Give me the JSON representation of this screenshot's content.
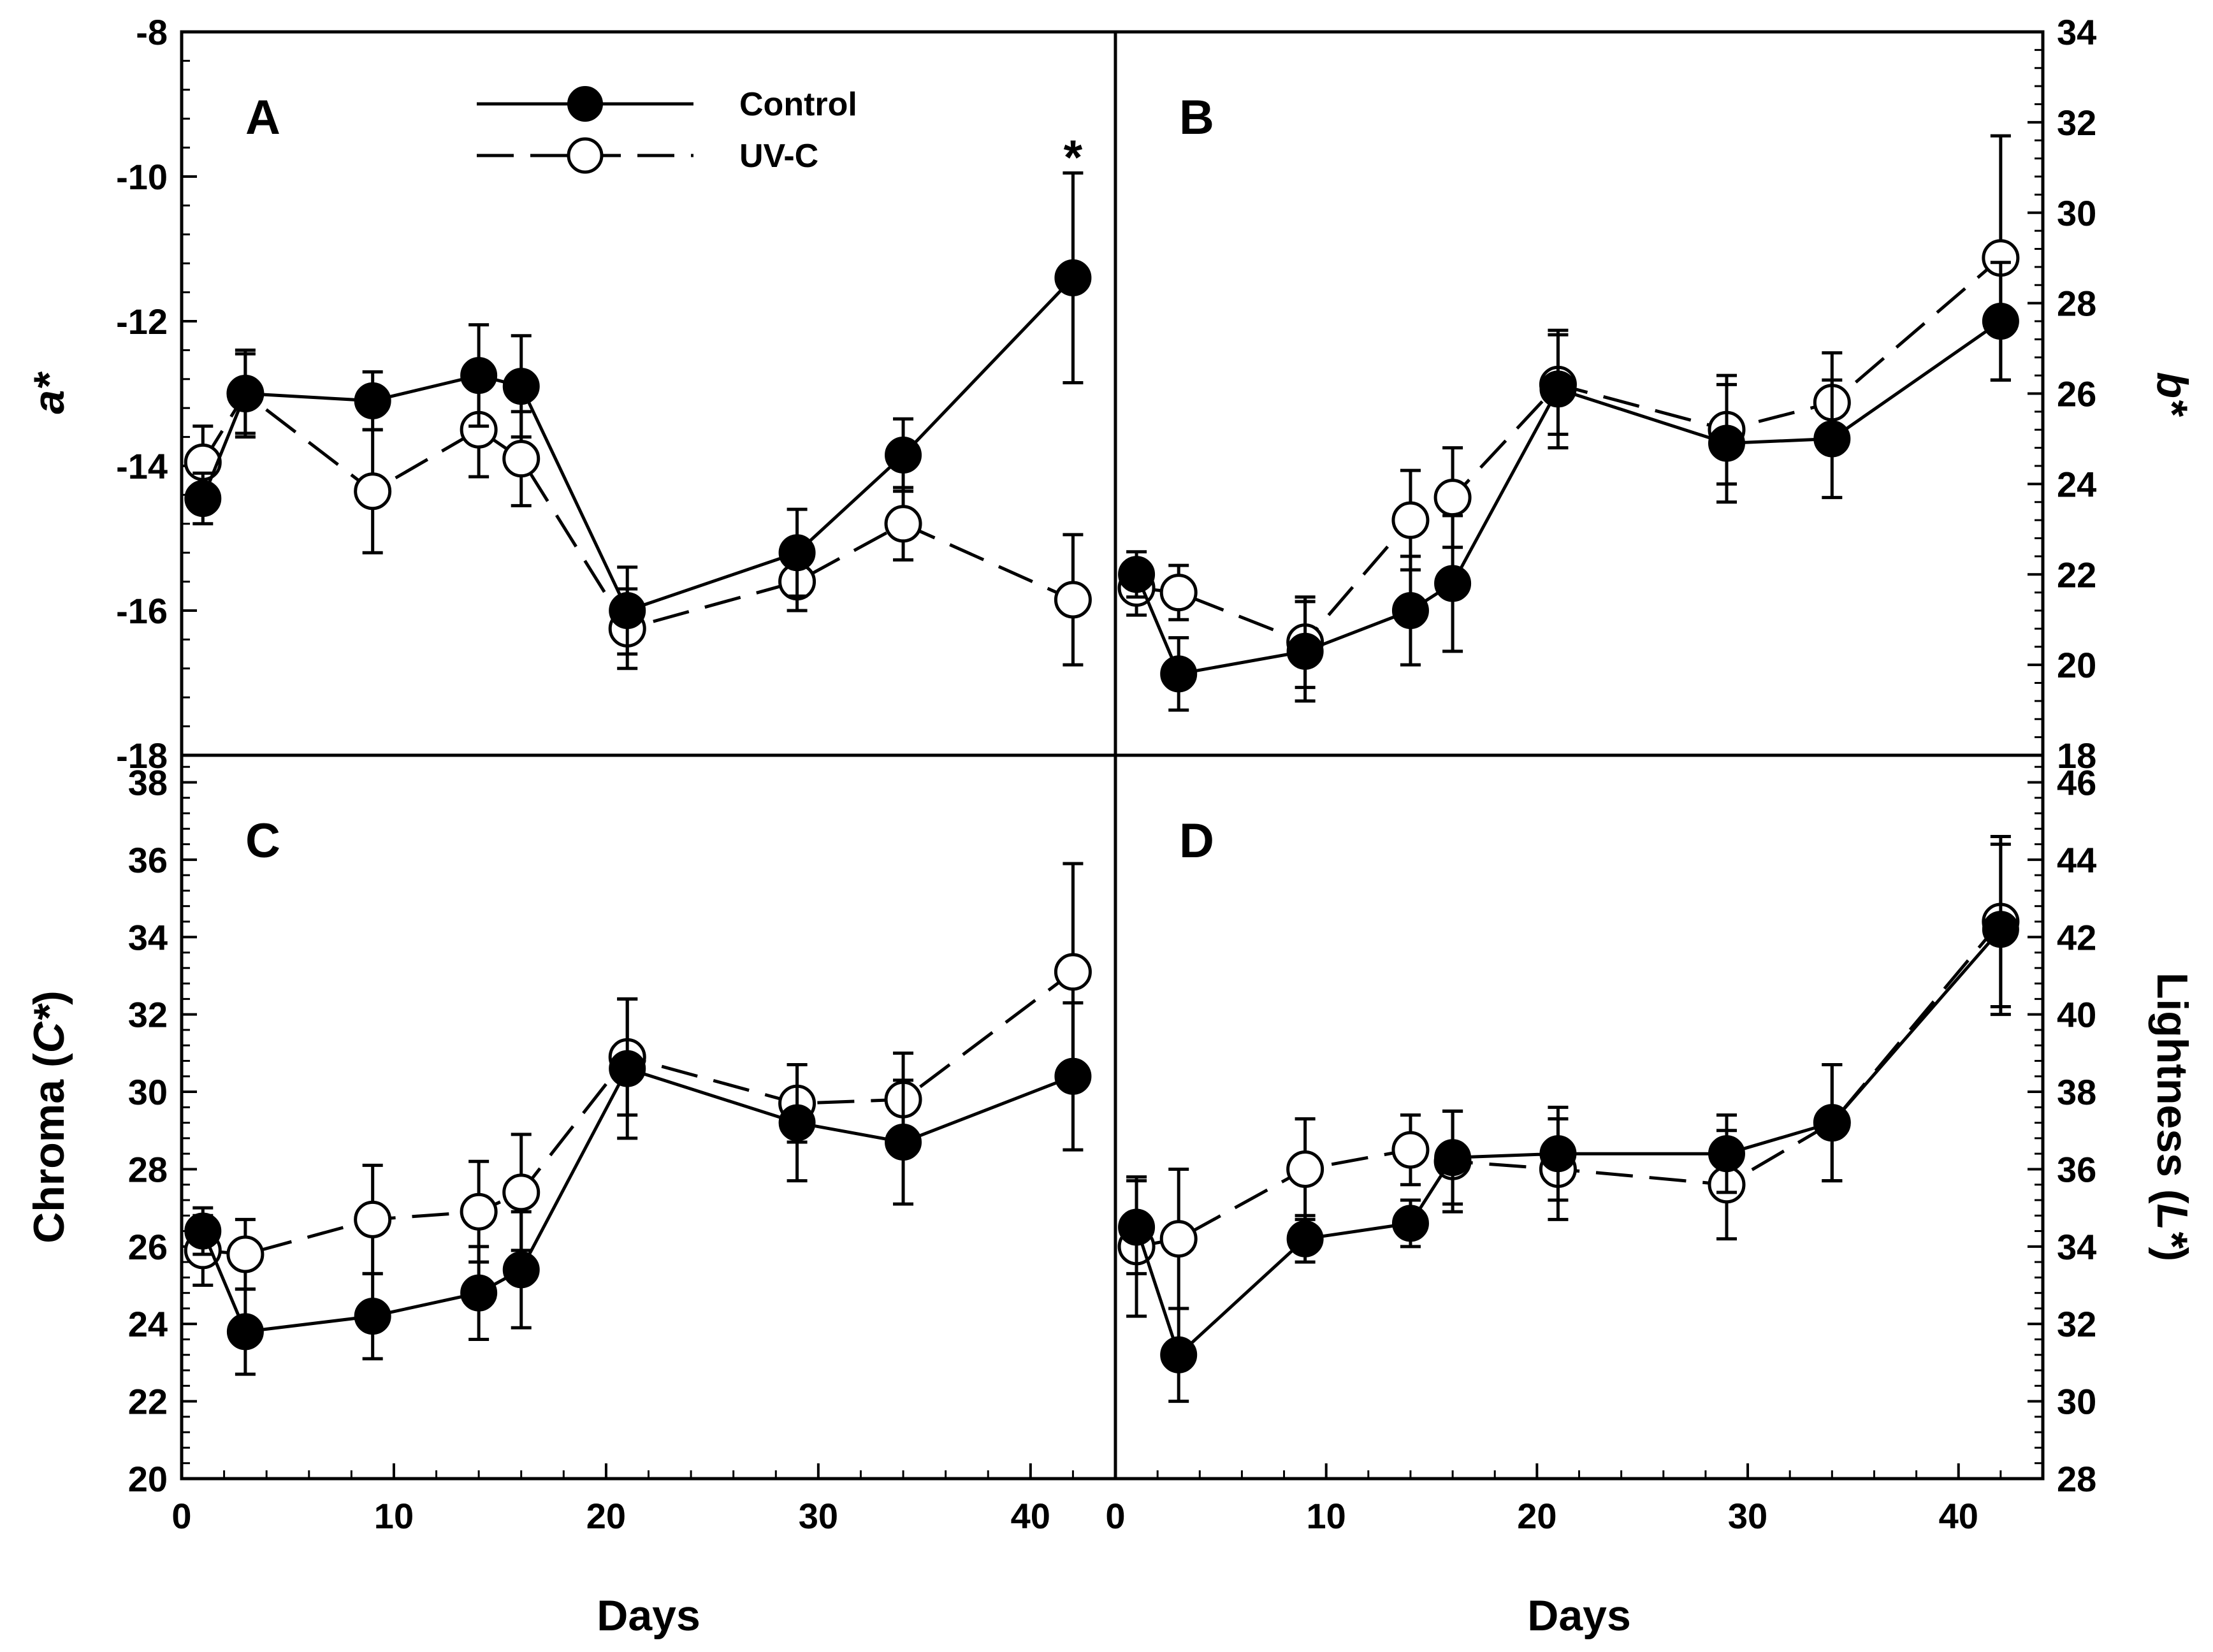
{
  "legend": {
    "control_label": "Control",
    "uvc_label": "UV-C"
  },
  "shared_xlabel": "Days",
  "chart_data": [
    {
      "panel": "A",
      "type": "line",
      "ylabel": "a*",
      "ylim": [
        -18,
        -8
      ],
      "yticks": [
        -18,
        -16,
        -14,
        -12,
        -10,
        -8
      ],
      "xlim": [
        0,
        44
      ],
      "xticks": [
        0,
        10,
        20,
        30,
        40
      ],
      "y_axis_side": "left",
      "annotation": {
        "text": "*",
        "x": 42,
        "y": -9.7
      },
      "series": [
        {
          "name": "Control",
          "x": [
            1,
            3,
            9,
            14,
            16,
            21,
            29,
            34,
            42
          ],
          "y": [
            -14.45,
            -13.0,
            -13.1,
            -12.75,
            -12.9,
            -16.0,
            -15.2,
            -13.85,
            -11.4
          ],
          "err": [
            0.35,
            0.6,
            0.4,
            0.7,
            0.7,
            0.6,
            0.6,
            0.5,
            1.45
          ]
        },
        {
          "name": "UV-C",
          "x": [
            1,
            3,
            9,
            14,
            16,
            21,
            29,
            34,
            42
          ],
          "y": [
            -13.95,
            -13.0,
            -14.35,
            -13.5,
            -13.9,
            -16.25,
            -15.6,
            -14.8,
            -15.85
          ],
          "err": [
            0.5,
            0.55,
            0.85,
            0.65,
            0.65,
            0.55,
            0.4,
            0.5,
            0.9
          ]
        }
      ]
    },
    {
      "panel": "B",
      "type": "line",
      "ylabel": "b*",
      "ylim": [
        18,
        34
      ],
      "yticks": [
        18,
        20,
        22,
        24,
        26,
        28,
        30,
        32,
        34
      ],
      "xlim": [
        0,
        44
      ],
      "xticks": [
        0,
        10,
        20,
        30,
        40
      ],
      "y_axis_side": "right",
      "series": [
        {
          "name": "Control",
          "x": [
            1,
            3,
            9,
            14,
            16,
            21,
            29,
            34,
            42
          ],
          "y": [
            22.0,
            19.8,
            20.3,
            21.2,
            21.8,
            26.1,
            24.9,
            25.0,
            27.6
          ],
          "err": [
            0.5,
            0.8,
            1.1,
            1.2,
            1.5,
            1.3,
            1.3,
            1.3,
            1.3
          ]
        },
        {
          "name": "UV-C",
          "x": [
            1,
            3,
            9,
            14,
            16,
            21,
            29,
            34,
            42
          ],
          "y": [
            21.7,
            21.6,
            20.5,
            23.2,
            23.7,
            26.2,
            25.2,
            25.8,
            29.0
          ],
          "err": [
            0.6,
            0.6,
            1.0,
            1.1,
            1.1,
            1.1,
            1.2,
            1.1,
            2.7
          ]
        }
      ]
    },
    {
      "panel": "C",
      "type": "line",
      "ylabel": "Chroma (C*)",
      "ylim": [
        20,
        38.7
      ],
      "yticks": [
        20,
        22,
        24,
        26,
        28,
        30,
        32,
        34,
        36,
        38
      ],
      "xlim": [
        0,
        44
      ],
      "xticks": [
        0,
        10,
        20,
        30,
        40
      ],
      "y_axis_side": "left",
      "series": [
        {
          "name": "Control",
          "x": [
            1,
            3,
            9,
            14,
            16,
            21,
            29,
            34,
            42
          ],
          "y": [
            26.4,
            23.8,
            24.2,
            24.8,
            25.4,
            30.6,
            29.2,
            28.7,
            30.4
          ],
          "err": [
            0.6,
            1.1,
            1.1,
            1.2,
            1.5,
            1.8,
            1.5,
            1.6,
            1.9
          ]
        },
        {
          "name": "UV-C",
          "x": [
            1,
            3,
            9,
            14,
            16,
            21,
            29,
            34,
            42
          ],
          "y": [
            25.9,
            25.8,
            26.7,
            26.9,
            27.4,
            30.9,
            29.7,
            29.8,
            33.1
          ],
          "err": [
            0.9,
            0.9,
            1.4,
            1.3,
            1.5,
            1.5,
            1.0,
            1.2,
            2.8
          ]
        }
      ]
    },
    {
      "panel": "D",
      "type": "line",
      "ylabel": "Lightness (L*)",
      "ylim": [
        28,
        46.7
      ],
      "yticks": [
        28,
        30,
        32,
        34,
        36,
        38,
        40,
        42,
        44,
        46
      ],
      "xlim": [
        0,
        44
      ],
      "xticks": [
        0,
        10,
        20,
        30,
        40
      ],
      "y_axis_side": "right",
      "series": [
        {
          "name": "Control",
          "x": [
            1,
            3,
            9,
            14,
            16,
            21,
            29,
            34,
            42
          ],
          "y": [
            34.5,
            31.2,
            34.2,
            34.6,
            36.3,
            36.4,
            36.4,
            37.2,
            42.2
          ],
          "err": [
            1.2,
            1.2,
            0.6,
            0.6,
            1.2,
            1.2,
            1.0,
            1.5,
            2.2
          ]
        },
        {
          "name": "UV-C",
          "x": [
            1,
            3,
            9,
            14,
            16,
            21,
            29,
            34,
            42
          ],
          "y": [
            34.0,
            34.2,
            36.0,
            36.5,
            36.2,
            36.0,
            35.6,
            37.2,
            42.4
          ],
          "err": [
            1.8,
            1.8,
            1.3,
            0.9,
            1.3,
            1.3,
            1.4,
            1.5,
            2.2
          ]
        }
      ]
    }
  ]
}
